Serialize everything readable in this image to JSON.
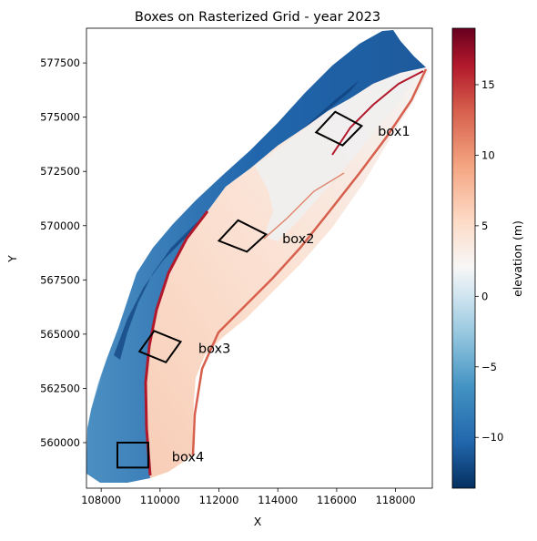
{
  "chart_data": {
    "type": "heatmap",
    "title": "Boxes on Rasterized Grid - year 2023",
    "xlabel": "X",
    "ylabel": "Y",
    "xlim": [
      107500,
      119250
    ],
    "ylim": [
      557900,
      579100
    ],
    "x_ticks": [
      108000,
      110000,
      112000,
      114000,
      116000,
      118000
    ],
    "x_tick_labels": [
      "108000",
      "110000",
      "112000",
      "114000",
      "116000",
      "118000"
    ],
    "y_ticks": [
      560000,
      562500,
      565000,
      567500,
      570000,
      572500,
      575000,
      577500
    ],
    "y_tick_labels": [
      "560000",
      "562500",
      "565000",
      "567500",
      "570000",
      "572500",
      "575000",
      "577500"
    ],
    "colorbar": {
      "label": "elevation (m)",
      "colormap": "RdBu_r",
      "range": [
        -13.6,
        19
      ],
      "ticks": [
        -10,
        -5,
        0,
        5,
        10,
        15
      ],
      "tick_labels": [
        "−10",
        "−5",
        "0",
        "5",
        "10",
        "15"
      ]
    },
    "boxes": [
      {
        "label": "box1",
        "corners": [
          [
            115300,
            574300
          ],
          [
            115950,
            575250
          ],
          [
            116850,
            574600
          ],
          [
            116200,
            573700
          ]
        ],
        "label_pos": [
          117400,
          574350
        ]
      },
      {
        "label": "box2",
        "corners": [
          [
            112000,
            569300
          ],
          [
            112650,
            570250
          ],
          [
            113600,
            569600
          ],
          [
            112950,
            568800
          ]
        ],
        "label_pos": [
          114150,
          569400
        ]
      },
      {
        "label": "box3",
        "corners": [
          [
            109300,
            564200
          ],
          [
            109800,
            565150
          ],
          [
            110700,
            564650
          ],
          [
            110200,
            563700
          ]
        ],
        "label_pos": [
          111300,
          564350
        ]
      },
      {
        "label": "box4",
        "corners": [
          [
            108550,
            558850
          ],
          [
            108550,
            560000
          ],
          [
            109600,
            560000
          ],
          [
            109600,
            558850
          ]
        ],
        "label_pos": [
          110400,
          559350
        ]
      }
    ],
    "grid": false
  }
}
